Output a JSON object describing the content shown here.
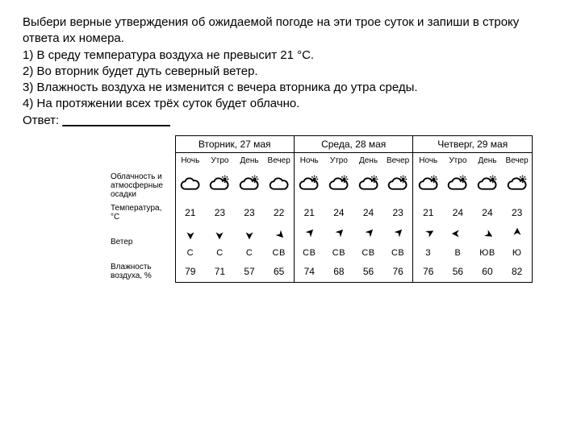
{
  "question": {
    "intro": "Выбери верные утверждения об ожидаемой погоде на эти трое суток и запиши в строку ответа их номера.",
    "s1": "1) В среду температура воздуха не превысит 21 °С.",
    "s2": "2) Во вторник будет дуть северный ветер.",
    "s3": "3) Влажность воздуха не изменится с вечера вторника до утра среды.",
    "s4": "4) На протяжении всех трёх суток будет облачно.",
    "answer_label": "Ответ:",
    "answer_blank": "________________"
  },
  "days": [
    {
      "label": "Вторник, 27 мая"
    },
    {
      "label": "Среда, 28 мая"
    },
    {
      "label": "Четверг, 29 мая"
    }
  ],
  "tod_labels": [
    "Ночь",
    "Утро",
    "День",
    "Вечер"
  ],
  "row_labels": {
    "cloud": "Облачность и атмосферные осадки",
    "temp": "Температура, °С",
    "wind": "Ветер",
    "hum": "Влажность воздуха, %"
  },
  "cloud_icons": [
    "cloud",
    "cloud-sun",
    "cloud-sun",
    "cloud",
    "cloud-sun",
    "cloud-sun",
    "cloud-sun",
    "cloud-sun",
    "cloud-sun",
    "cloud-sun",
    "cloud-sun",
    "cloud-sun"
  ],
  "temps": [
    21,
    23,
    23,
    22,
    21,
    24,
    24,
    23,
    21,
    24,
    24,
    23
  ],
  "wind_arrows_deg": [
    180,
    180,
    180,
    135,
    45,
    45,
    45,
    45,
    60,
    270,
    120,
    0
  ],
  "wind_dirs": [
    "С",
    "С",
    "С",
    "СВ",
    "СВ",
    "СВ",
    "СВ",
    "СВ",
    "З",
    "В",
    "ЮВ",
    "Ю"
  ],
  "humidity": [
    79,
    71,
    57,
    65,
    74,
    68,
    56,
    76,
    76,
    56,
    60,
    82
  ],
  "styling": {
    "arrow_fill": "#000000",
    "border_color": "#000000",
    "bg_color": "#ffffff",
    "text_color": "#000000",
    "header_fontsize": 12,
    "tod_fontsize": 10,
    "value_fontsize": 12,
    "rowlabel_fontsize": 10
  }
}
